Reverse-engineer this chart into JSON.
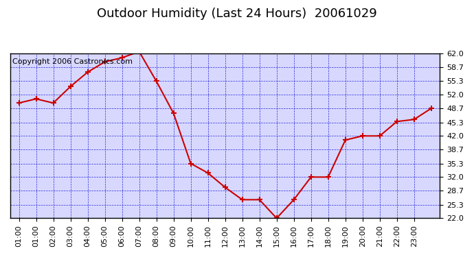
{
  "title": "Outdoor Humidity (Last 24 Hours)  20061029",
  "copyright_text": "Copyright 2006 Castronics.com",
  "x_labels": [
    "01:00",
    "01:00",
    "02:00",
    "03:00",
    "04:00",
    "05:00",
    "06:00",
    "07:00",
    "08:00",
    "09:00",
    "10:00",
    "11:00",
    "12:00",
    "13:00",
    "14:00",
    "15:00",
    "16:00",
    "17:00",
    "18:00",
    "19:00",
    "20:00",
    "21:00",
    "22:00",
    "23:00"
  ],
  "y_values": [
    50.0,
    51.0,
    50.0,
    54.0,
    57.5,
    60.0,
    61.0,
    62.5,
    55.3,
    47.5,
    35.3,
    33.0,
    29.5,
    26.5,
    26.5,
    22.0,
    26.5,
    32.0,
    32.0,
    41.0,
    42.0,
    42.0,
    45.5,
    46.0,
    48.7
  ],
  "x_positions": [
    0,
    1,
    2,
    3,
    4,
    5,
    6,
    7,
    8,
    9,
    10,
    11,
    12,
    13,
    14,
    15,
    16,
    17,
    18,
    19,
    20,
    21,
    22,
    23,
    24
  ],
  "ylim_min": 22.0,
  "ylim_max": 62.0,
  "yticks": [
    22.0,
    25.3,
    28.7,
    32.0,
    35.3,
    38.7,
    42.0,
    45.3,
    48.7,
    52.0,
    55.3,
    58.7,
    62.0
  ],
  "line_color": "#cc0000",
  "marker_color": "#cc0000",
  "bg_color": "#d8d8ff",
  "grid_color": "#0000cc",
  "border_color": "#000000",
  "title_color": "#000000",
  "copyright_color": "#000000",
  "title_fontsize": 13,
  "copyright_fontsize": 8,
  "tick_fontsize": 8
}
